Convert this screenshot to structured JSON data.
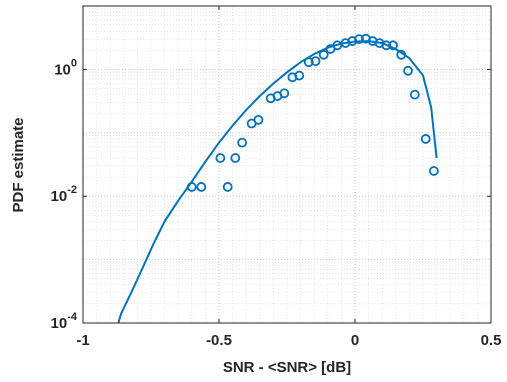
{
  "chart_data": {
    "type": "scatter",
    "title": "",
    "xlabel": "SNR - <SNR> [dB]",
    "ylabel": "PDF estimate",
    "xlim": [
      -1,
      0.5
    ],
    "ylim": [
      0.0001,
      10
    ],
    "yscale": "log",
    "grid": true,
    "minor_grid": true,
    "x_ticks": [
      -1,
      -0.5,
      0,
      0.5
    ],
    "x_tick_labels": [
      "-1",
      "-0.5",
      "0",
      "0.5"
    ],
    "y_ticks": [
      0.0001,
      0.01,
      1
    ],
    "y_tick_labels": [
      {
        "base": "10",
        "exp": "-4"
      },
      {
        "base": "10",
        "exp": "-2"
      },
      {
        "base": "10",
        "exp": "0"
      }
    ],
    "color": "#0072BD",
    "series": [
      {
        "kind": "markers",
        "marker": "circle",
        "x": [
          -0.6,
          -0.565,
          -0.495,
          -0.468,
          -0.44,
          -0.415,
          -0.38,
          -0.355,
          -0.31,
          -0.285,
          -0.26,
          -0.23,
          -0.205,
          -0.17,
          -0.145,
          -0.115,
          -0.09,
          -0.065,
          -0.035,
          -0.01,
          0.015,
          0.04,
          0.065,
          0.09,
          0.115,
          0.14,
          0.17,
          0.195,
          0.22,
          0.26,
          0.29
        ],
        "y": [
          0.014,
          0.014,
          0.04,
          0.014,
          0.04,
          0.07,
          0.14,
          0.16,
          0.35,
          0.38,
          0.42,
          0.75,
          0.8,
          1.3,
          1.35,
          1.7,
          2.1,
          2.4,
          2.6,
          2.8,
          3.0,
          3.05,
          2.8,
          2.6,
          2.4,
          2.4,
          1.7,
          0.95,
          0.4,
          0.08,
          0.025
        ]
      },
      {
        "kind": "line",
        "x": [
          -0.87,
          -0.86,
          -0.82,
          -0.78,
          -0.74,
          -0.7,
          -0.65,
          -0.6,
          -0.55,
          -0.5,
          -0.45,
          -0.4,
          -0.35,
          -0.3,
          -0.25,
          -0.2,
          -0.15,
          -0.1,
          -0.05,
          0,
          0.05,
          0.1,
          0.15,
          0.2,
          0.25,
          0.28,
          0.3
        ],
        "y": [
          0.0001,
          0.00014,
          0.00032,
          0.00075,
          0.0018,
          0.004,
          0.0085,
          0.017,
          0.035,
          0.07,
          0.13,
          0.23,
          0.38,
          0.6,
          0.9,
          1.3,
          1.75,
          2.2,
          2.55,
          2.75,
          2.8,
          2.6,
          2.1,
          1.5,
          0.8,
          0.25,
          0.04
        ]
      }
    ]
  }
}
